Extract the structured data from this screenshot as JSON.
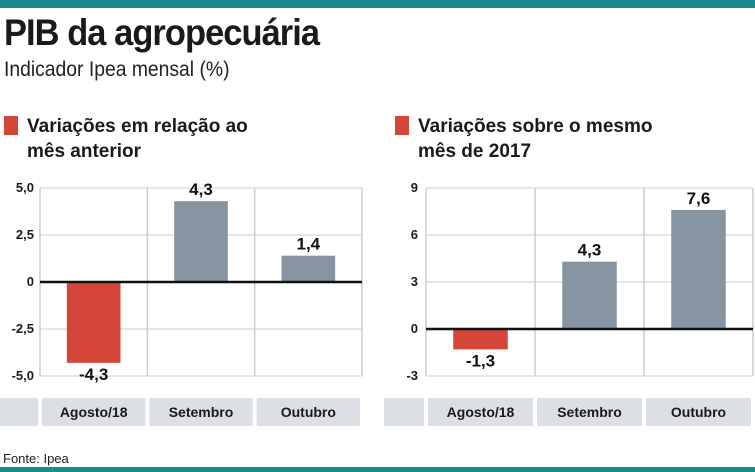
{
  "header": {
    "title": "PIB da agropecuária",
    "subtitle": "Indicador Ipea mensal (%)"
  },
  "footer": {
    "source": "Fonte: Ipea"
  },
  "colors": {
    "accent_rule": "#1b8a8f",
    "negative": "#d4453a",
    "positive": "#8794a1",
    "grid": "#c9ced3",
    "category_band": "#dcdfe3"
  },
  "chart_data": [
    {
      "type": "bar",
      "legend_label": "Variações em relação ao mês anterior",
      "categories": [
        "Agosto/18",
        "Setembro",
        "Outubro"
      ],
      "values": [
        -4.3,
        4.3,
        1.4
      ],
      "value_labels": [
        "-4,3",
        "4,3",
        "1,4"
      ],
      "ylim": [
        -5.0,
        5.0
      ],
      "yticks": [
        5.0,
        2.5,
        0,
        -2.5,
        -5.0
      ],
      "ytick_labels": [
        "5,0",
        "2,5",
        "0",
        "-2,5",
        "-5,0"
      ],
      "grid": true
    },
    {
      "type": "bar",
      "legend_label": "Variações sobre o mesmo mês de 2017",
      "categories": [
        "Agosto/18",
        "Setembro",
        "Outubro"
      ],
      "values": [
        -1.3,
        4.3,
        7.6
      ],
      "value_labels": [
        "-1,3",
        "4,3",
        "7,6"
      ],
      "ylim": [
        -3,
        9
      ],
      "yticks": [
        9,
        6,
        3,
        0,
        -3
      ],
      "ytick_labels": [
        "9",
        "6",
        "3",
        "0",
        "-3"
      ],
      "grid": true
    }
  ]
}
